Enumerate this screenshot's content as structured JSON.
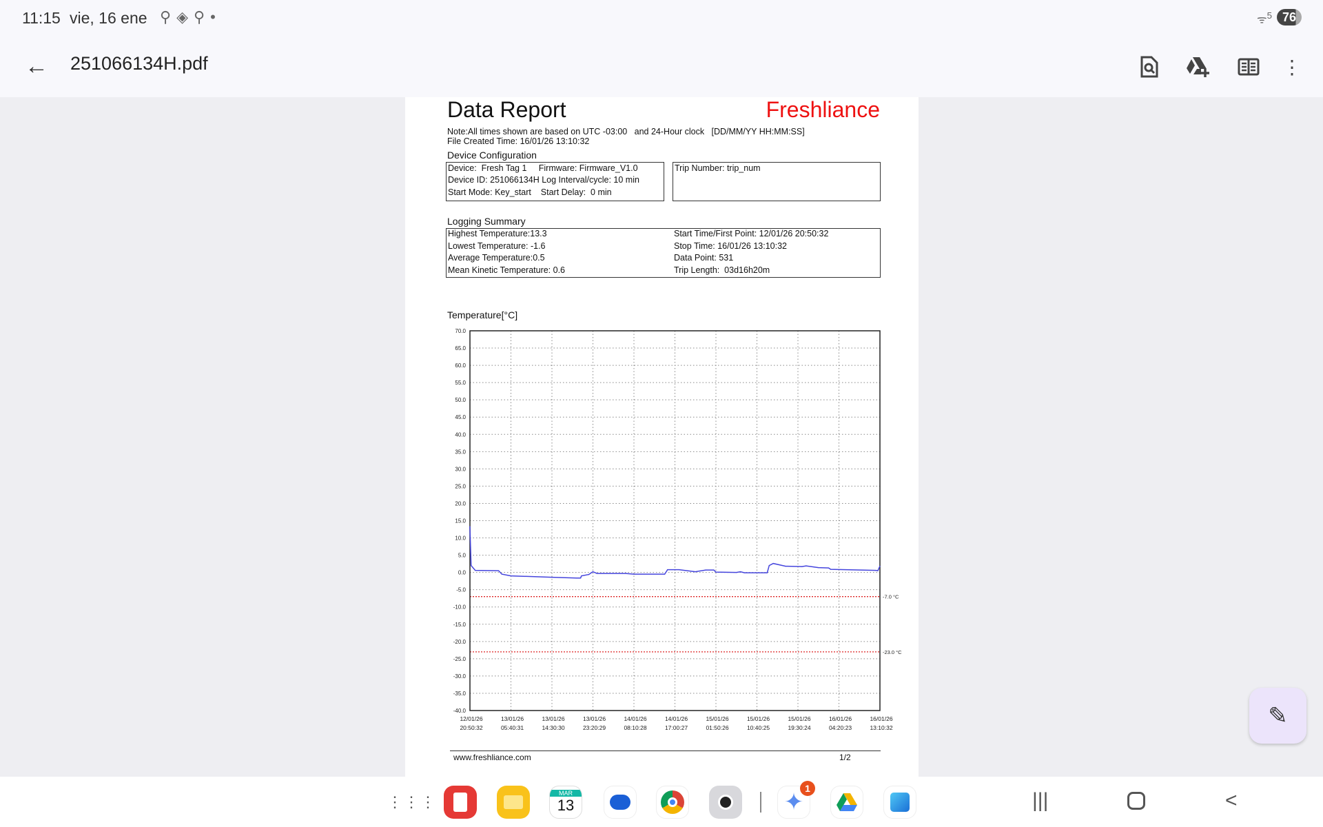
{
  "status_bar": {
    "time": "11:15",
    "date": "vie, 16 ene",
    "battery": "76",
    "wifi_label": "5"
  },
  "app_bar": {
    "title": "251066134H.pdf",
    "icons": [
      "back-arrow-icon",
      "find-in-document-icon",
      "add-to-drive-icon",
      "reading-mode-icon",
      "more-vert-icon"
    ]
  },
  "document": {
    "title": "Data Report",
    "brand": "Freshliance",
    "brand_color": "#ee1111",
    "note": "Note:All times shown are based on UTC -03:00   and 24-Hour clock   [DD/MM/YY HH:MM:SS]",
    "file_created": "File Created Time: 16/01/26 13:10:32",
    "device_config": {
      "heading": "Device Configuration",
      "line1": "Device:  Fresh Tag 1     Firmware: Firmware_V1.0",
      "line2": "Device ID: 251066134H Log Interval/cycle: 10 min",
      "line3": "Start Mode: Key_start    Start Delay:  0 min",
      "trip": "Trip Number: trip_num"
    },
    "logging_summary": {
      "heading": "Logging Summary",
      "left": [
        "Highest Temperature:13.3",
        "Lowest Temperature: -1.6",
        "Average Temperature:0.5",
        "Mean Kinetic Temperature: 0.6"
      ],
      "right": [
        "Start Time/First Point: 12/01/26 20:50:32",
        "Stop Time: 16/01/26 13:10:32",
        "Data Point: 531",
        "Trip Length:  03d16h20m"
      ]
    },
    "footer": {
      "url": "www.freshliance.com",
      "page": "1/2"
    }
  },
  "chart_data": {
    "type": "line",
    "ylabel": "Temperature[°C]",
    "ylim": [
      -40,
      70
    ],
    "yticks": [
      "70.0",
      "65.0",
      "60.0",
      "55.0",
      "50.0",
      "45.0",
      "40.0",
      "35.0",
      "30.0",
      "25.0",
      "20.0",
      "15.0",
      "10.0",
      "5.0",
      "0.0",
      "-5.0",
      "-10.0",
      "-15.0",
      "-20.0",
      "-25.0",
      "-30.0",
      "-35.0",
      "-40.0"
    ],
    "xlim": [
      "12/01/26 20:50:32",
      "16/01/26 13:10:32"
    ],
    "xticks": [
      [
        "12/01/26",
        "20:50:32"
      ],
      [
        "13/01/26",
        "05:40:31"
      ],
      [
        "13/01/26",
        "14:30:30"
      ],
      [
        "13/01/26",
        "23:20:29"
      ],
      [
        "14/01/26",
        "08:10:28"
      ],
      [
        "14/01/26",
        "17:00:27"
      ],
      [
        "15/01/26",
        "01:50:26"
      ],
      [
        "15/01/26",
        "10:40:25"
      ],
      [
        "15/01/26",
        "19:30:24"
      ],
      [
        "16/01/26",
        "04:20:23"
      ],
      [
        "16/01/26",
        "13:10:32"
      ]
    ],
    "grid": true,
    "series_color": "#4444dd",
    "limit_color": "#dd2222",
    "limits": [
      {
        "value": -7.0,
        "label": "-7.0  °C"
      },
      {
        "value": -23.0,
        "label": "-23.0 °C"
      }
    ],
    "points": [
      [
        "12/01/26 20:50",
        13.3
      ],
      [
        "12/01/26 21:06",
        2.0
      ],
      [
        "12/01/26 21:59",
        0.6
      ],
      [
        "13/01/26 03:01",
        0.5
      ],
      [
        "13/01/26 03:43",
        -0.5
      ],
      [
        "13/01/26 05:40",
        -1.0
      ],
      [
        "13/01/26 14:30",
        -1.4
      ],
      [
        "13/01/26 19:48",
        -1.6
      ],
      [
        "13/01/26 20:41",
        -1.6
      ],
      [
        "13/01/26 20:52",
        -1.0
      ],
      [
        "13/01/26 22:27",
        -0.6
      ],
      [
        "13/01/26 23:20",
        0.2
      ],
      [
        "14/01/26 00:13",
        -0.3
      ],
      [
        "14/01/26 06:24",
        -0.3
      ],
      [
        "14/01/26 08:10",
        -0.5
      ],
      [
        "14/01/26 14:48",
        -0.5
      ],
      [
        "14/01/26 15:25",
        0.8
      ],
      [
        "14/01/26 17:53",
        0.8
      ],
      [
        "14/01/26 21:25",
        0.2
      ],
      [
        "14/01/26 23:38",
        0.7
      ],
      [
        "15/01/26 01:24",
        0.7
      ],
      [
        "15/01/26 01:50",
        0.1
      ],
      [
        "15/01/26 06:15",
        0.0
      ],
      [
        "15/01/26 07:08",
        0.2
      ],
      [
        "15/01/26 08:01",
        -0.1
      ],
      [
        "15/01/26 12:53",
        -0.1
      ],
      [
        "15/01/26 13:19",
        2.0
      ],
      [
        "15/01/26 14:12",
        2.6
      ],
      [
        "15/01/26 16:51",
        1.8
      ],
      [
        "15/01/26 20:23",
        1.7
      ],
      [
        "15/01/26 21:16",
        1.9
      ],
      [
        "15/01/26 23:55",
        1.4
      ],
      [
        "16/01/26 02:08",
        1.3
      ],
      [
        "16/01/26 02:34",
        0.9
      ],
      [
        "16/01/26 12:17",
        0.6
      ],
      [
        "16/01/26 12:44",
        0.5
      ],
      [
        "16/01/26 13:10",
        1.8
      ]
    ]
  },
  "dock": {
    "apps": [
      "App drawer",
      "Notes",
      "My Files",
      "Calendar",
      "Messages",
      "Chrome",
      "Camera",
      "Gemini",
      "Drive",
      "Outlook"
    ],
    "calendar_month": "MAR",
    "calendar_day": "13",
    "gemini_badge": "1"
  },
  "nav": {
    "recents": "recents-icon",
    "home": "home-icon",
    "back": "back-icon"
  }
}
